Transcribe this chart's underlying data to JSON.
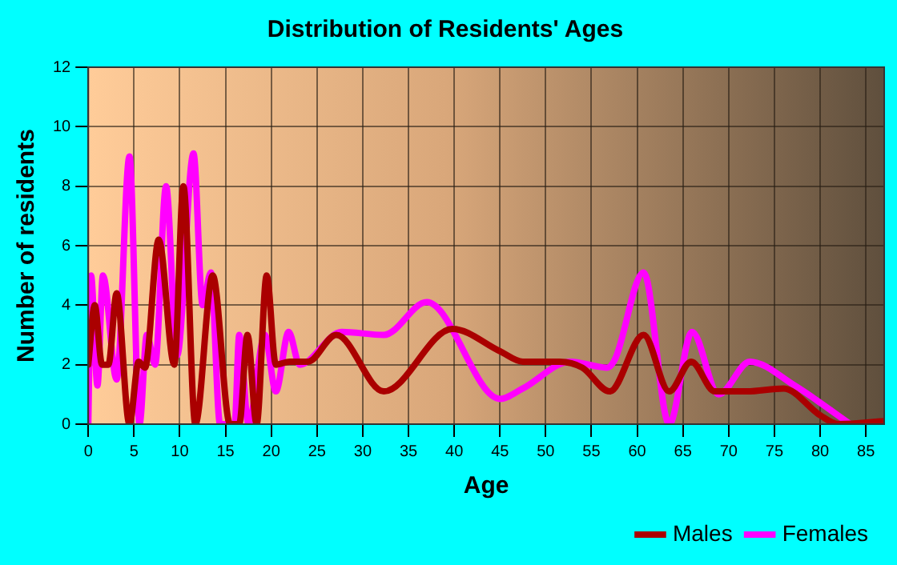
{
  "chart_data": {
    "type": "line",
    "title": "Distribution of Residents' Ages",
    "xlabel": "Age",
    "ylabel": "Number of residents",
    "xlim": [
      0,
      87
    ],
    "xticks": [
      0,
      5,
      10,
      15,
      20,
      25,
      30,
      35,
      40,
      45,
      50,
      55,
      60,
      65,
      70,
      75,
      80,
      85
    ],
    "ylim": [
      0,
      12
    ],
    "yticks": [
      0,
      2,
      4,
      6,
      8,
      10,
      12
    ],
    "grid": true,
    "legend": "bottom right",
    "marker": "none",
    "line_style": "solid",
    "series": [
      {
        "name": "Males",
        "color": "#aa0000",
        "x": [
          0,
          0.7,
          1.5,
          2.2,
          3.1,
          4.5,
          5.5,
          6.2,
          7.7,
          9.4,
          10.4,
          11.7,
          13.6,
          15.5,
          16.5,
          17.4,
          18.4,
          19.5,
          20.5,
          22,
          24,
          27.1,
          32.3,
          39.8,
          45,
          47.5,
          51.5,
          54,
          57,
          60.7,
          63.5,
          65.9,
          68.5,
          72,
          76,
          80,
          82,
          87
        ],
        "values": [
          2,
          4,
          2,
          2,
          4.4,
          0,
          2.1,
          1.9,
          6.2,
          2,
          8,
          0,
          5,
          0,
          0,
          3,
          0,
          5,
          2,
          2.1,
          2.1,
          3,
          1.1,
          3.2,
          2.45,
          2.1,
          2.1,
          1.9,
          1.1,
          3,
          1.1,
          2.1,
          1.1,
          1.1,
          1.2,
          0.3,
          0,
          0.1
        ]
      },
      {
        "name": "Females",
        "color": "#ff00ff",
        "x": [
          0,
          0.3,
          1,
          1.6,
          3.1,
          4.5,
          5.6,
          6.4,
          7.3,
          8.5,
          9.7,
          11.5,
          12.5,
          13.4,
          14.4,
          16,
          16.5,
          17.5,
          19.3,
          20.5,
          21.9,
          23.1,
          27.7,
          32.3,
          37,
          45,
          47.5,
          52.7,
          56.7,
          57.6,
          60.7,
          63.5,
          66,
          68.9,
          72.3,
          77.2,
          83.3
        ],
        "values": [
          0,
          5,
          1.3,
          5,
          1.5,
          9,
          0,
          3,
          2,
          8,
          2.3,
          9.1,
          4,
          5.1,
          0,
          0,
          3,
          0,
          3,
          1.1,
          3.1,
          2,
          3.1,
          3,
          4.1,
          0.85,
          1.2,
          2.1,
          1.9,
          2.2,
          5.1,
          0,
          3.1,
          1,
          2.1,
          1.3,
          0
        ]
      }
    ]
  }
}
